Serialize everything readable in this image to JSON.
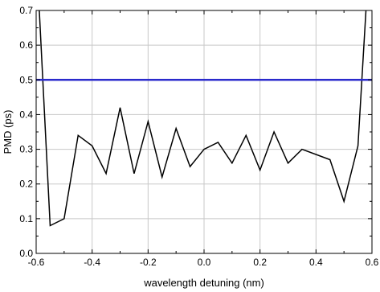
{
  "chart_data": {
    "type": "line",
    "title": "",
    "xlabel": "wavelength detuning (nm)",
    "ylabel": "PMD (ps)",
    "xlim": [
      -0.6,
      0.6
    ],
    "ylim": [
      0.0,
      0.7
    ],
    "xticks": [
      -0.6,
      -0.4,
      -0.2,
      0.0,
      0.2,
      0.4,
      0.6
    ],
    "xtick_labels": [
      "-0.6",
      "-0.4",
      "-0.2",
      "0.0",
      "0.2",
      "0.4",
      "0.6"
    ],
    "yticks": [
      0.0,
      0.1,
      0.2,
      0.3,
      0.4,
      0.5,
      0.6,
      0.7
    ],
    "ytick_labels": [
      "0.0",
      "0.1",
      "0.2",
      "0.3",
      "0.4",
      "0.5",
      "0.6",
      "0.7"
    ],
    "grid": true,
    "series": [
      {
        "color": "#000000",
        "x": [
          -0.59,
          -0.55,
          -0.5,
          -0.45,
          -0.4,
          -0.35,
          -0.3,
          -0.25,
          -0.2,
          -0.15,
          -0.1,
          -0.05,
          0.0,
          0.05,
          0.1,
          0.15,
          0.2,
          0.25,
          0.3,
          0.35,
          0.45,
          0.5,
          0.55,
          0.58
        ],
        "y": [
          0.72,
          0.08,
          0.1,
          0.34,
          0.31,
          0.23,
          0.42,
          0.23,
          0.38,
          0.22,
          0.36,
          0.25,
          0.3,
          0.32,
          0.26,
          0.34,
          0.24,
          0.35,
          0.26,
          0.3,
          0.27,
          0.15,
          0.31,
          0.72
        ]
      },
      {
        "color": "#2a2acc",
        "x": [
          -0.6,
          0.6
        ],
        "y": [
          0.5,
          0.5
        ]
      }
    ]
  }
}
